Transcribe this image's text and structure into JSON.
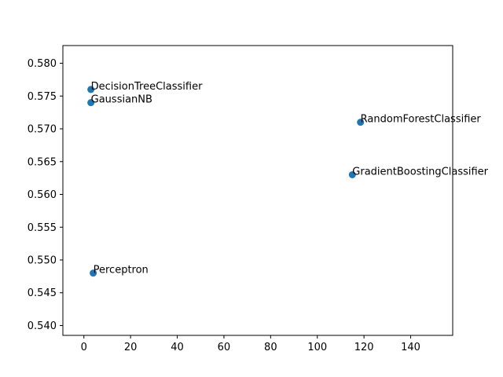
{
  "chart_data": {
    "type": "scatter",
    "title": "",
    "xlabel": "",
    "ylabel": "",
    "xlim": [
      -9,
      158
    ],
    "ylim": [
      0.5385,
      0.5827
    ],
    "xticks": [
      0,
      20,
      40,
      60,
      80,
      100,
      120,
      140
    ],
    "xtick_labels": [
      "0",
      "20",
      "40",
      "60",
      "80",
      "100",
      "120",
      "140"
    ],
    "yticks": [
      0.54,
      0.545,
      0.55,
      0.555,
      0.56,
      0.565,
      0.57,
      0.575,
      0.58
    ],
    "ytick_labels": [
      "0.540",
      "0.545",
      "0.550",
      "0.555",
      "0.560",
      "0.565",
      "0.570",
      "0.575",
      "0.580"
    ],
    "grid": false,
    "marker_color": "#1f77b4",
    "points": [
      {
        "label": "DecisionTreeClassifier",
        "x": 3,
        "y": 0.576
      },
      {
        "label": "GaussianNB",
        "x": 3,
        "y": 0.574
      },
      {
        "label": "RandomForestClassifier",
        "x": 118.5,
        "y": 0.571
      },
      {
        "label": "GradientBoostingClassifier",
        "x": 115,
        "y": 0.563
      },
      {
        "label": "Perceptron",
        "x": 4,
        "y": 0.548
      }
    ]
  }
}
